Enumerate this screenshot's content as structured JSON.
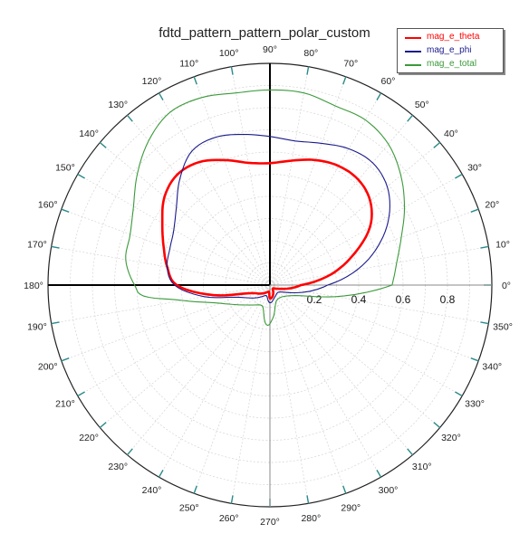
{
  "chart_data": {
    "type": "polar",
    "title": "fdtd_pattern_pattern_polar_custom",
    "angle_ticks": [
      "0°",
      "10°",
      "20°",
      "30°",
      "40°",
      "50°",
      "60°",
      "70°",
      "80°",
      "90°",
      "100°",
      "110°",
      "120°",
      "130°",
      "140°",
      "150°",
      "160°",
      "170°",
      "180°",
      "190°",
      "200°",
      "210°",
      "220°",
      "230°",
      "240°",
      "250°",
      "260°",
      "270°",
      "280°",
      "290°",
      "300°",
      "310°",
      "320°",
      "330°",
      "340°",
      "350°"
    ],
    "radial_ticks": [
      "0.2",
      "0.4",
      "0.6",
      "0.8"
    ],
    "rlim": [
      0,
      1
    ],
    "grid": true,
    "legend_position": "top-right",
    "series": [
      {
        "name": "mag_e_theta",
        "color": "#ff0000",
        "points": [
          [
            0,
            0.14
          ],
          [
            10,
            0.28
          ],
          [
            20,
            0.4
          ],
          [
            30,
            0.52
          ],
          [
            40,
            0.59
          ],
          [
            50,
            0.62
          ],
          [
            60,
            0.62
          ],
          [
            70,
            0.6
          ],
          [
            80,
            0.57
          ],
          [
            90,
            0.55
          ],
          [
            100,
            0.56
          ],
          [
            110,
            0.6
          ],
          [
            120,
            0.64
          ],
          [
            130,
            0.65
          ],
          [
            140,
            0.62
          ],
          [
            150,
            0.56
          ],
          [
            160,
            0.51
          ],
          [
            170,
            0.47
          ],
          [
            180,
            0.42
          ],
          [
            190,
            0.26
          ],
          [
            200,
            0.11
          ],
          [
            220,
            0.06
          ],
          [
            260,
            0.03
          ],
          [
            270,
            0.06
          ],
          [
            285,
            0.05
          ],
          [
            310,
            0.02
          ],
          [
            340,
            0.05
          ],
          [
            360,
            0.14
          ]
        ]
      },
      {
        "name": "mag_e_phi",
        "color": "#1a1a8c",
        "points": [
          [
            0,
            0.26
          ],
          [
            10,
            0.4
          ],
          [
            20,
            0.52
          ],
          [
            30,
            0.62
          ],
          [
            40,
            0.69
          ],
          [
            50,
            0.72
          ],
          [
            60,
            0.71
          ],
          [
            70,
            0.68
          ],
          [
            80,
            0.66
          ],
          [
            90,
            0.67
          ],
          [
            100,
            0.69
          ],
          [
            110,
            0.71
          ],
          [
            120,
            0.7
          ],
          [
            130,
            0.63
          ],
          [
            140,
            0.55
          ],
          [
            150,
            0.5
          ],
          [
            160,
            0.48
          ],
          [
            170,
            0.47
          ],
          [
            180,
            0.43
          ],
          [
            190,
            0.3
          ],
          [
            200,
            0.16
          ],
          [
            220,
            0.09
          ],
          [
            250,
            0.05
          ],
          [
            270,
            0.08
          ],
          [
            290,
            0.06
          ],
          [
            320,
            0.05
          ],
          [
            340,
            0.1
          ],
          [
            360,
            0.26
          ]
        ]
      },
      {
        "name": "mag_e_total",
        "color": "#3a9a3a",
        "points": [
          [
            0,
            0.55
          ],
          [
            10,
            0.58
          ],
          [
            20,
            0.63
          ],
          [
            30,
            0.7
          ],
          [
            40,
            0.77
          ],
          [
            50,
            0.83
          ],
          [
            60,
            0.86
          ],
          [
            70,
            0.86
          ],
          [
            80,
            0.88
          ],
          [
            90,
            0.88
          ],
          [
            100,
            0.88
          ],
          [
            110,
            0.9
          ],
          [
            120,
            0.9
          ],
          [
            130,
            0.85
          ],
          [
            140,
            0.78
          ],
          [
            150,
            0.71
          ],
          [
            160,
            0.67
          ],
          [
            170,
            0.66
          ],
          [
            180,
            0.61
          ],
          [
            185,
            0.57
          ],
          [
            190,
            0.4
          ],
          [
            200,
            0.24
          ],
          [
            220,
            0.14
          ],
          [
            250,
            0.1
          ],
          [
            265,
            0.18
          ],
          [
            275,
            0.15
          ],
          [
            290,
            0.08
          ],
          [
            320,
            0.08
          ],
          [
            340,
            0.14
          ],
          [
            350,
            0.3
          ],
          [
            360,
            0.55
          ]
        ]
      }
    ]
  }
}
